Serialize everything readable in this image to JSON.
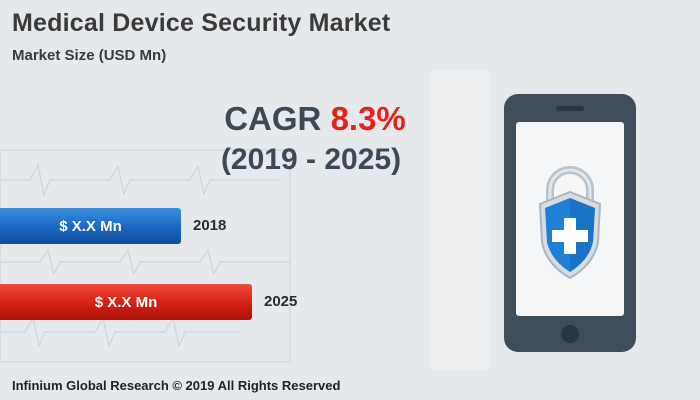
{
  "header": {
    "title": "Medical Device Security Market",
    "subtitle": "Market Size (USD Mn)"
  },
  "cagr": {
    "label": "CAGR",
    "value": "8.3%",
    "period": "(2019 - 2025)"
  },
  "chart_data": {
    "type": "bar",
    "orientation": "horizontal",
    "title": "Medical Device Security Market",
    "ylabel": "Market Size (USD Mn)",
    "categories": [
      "2018",
      "2025"
    ],
    "value_labels": [
      "$ X.X Mn",
      "$ X.X Mn"
    ],
    "relative_values": [
      0.72,
      1.0
    ],
    "colors": [
      "#1a66c2",
      "#d31f14"
    ]
  },
  "footer": {
    "copyright": "Infinium Global Research © 2019 All Rights Reserved"
  },
  "colors": {
    "accent_red": "#e2231a",
    "text_dark": "#3d4a55",
    "phone_body": "#3f4d5a",
    "shield_blue": "#1e7fd6"
  }
}
